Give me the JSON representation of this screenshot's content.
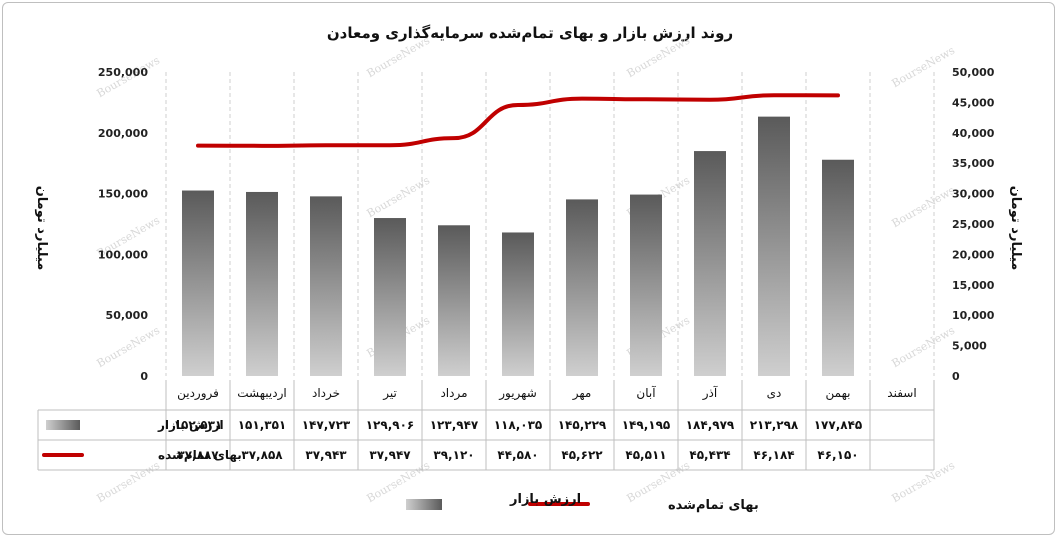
{
  "chart_data": {
    "type": "bar",
    "title": "روند ارزش بازار و بهای تمام‌شده سرمایه‌گذاری ومعادن",
    "categories": [
      "فروردین",
      "اردیبهشت",
      "خرداد",
      "تیر",
      "مرداد",
      "شهریور",
      "مهر",
      "آبان",
      "آذر",
      "دی",
      "بهمن",
      "اسفند"
    ],
    "ylabel_left": "میلیارد تومان",
    "ylabel_right": "میلیارد تومان",
    "ylim_left": [
      0,
      250000
    ],
    "ylim_right": [
      0,
      50000
    ],
    "yticks_left": [
      "0",
      "50,000",
      "100,000",
      "150,000",
      "200,000",
      "250,000"
    ],
    "yticks_right": [
      "0",
      "5,000",
      "10,000",
      "15,000",
      "20,000",
      "25,000",
      "30,000",
      "35,000",
      "40,000",
      "45,000",
      "50,000"
    ],
    "series": [
      {
        "name": "ارزش بازار",
        "type": "bar",
        "axis": "left",
        "color": "#6d6d6d",
        "values": [
          152531,
          151351,
          147723,
          129906,
          123947,
          118035,
          145229,
          149195,
          184979,
          213298,
          177845,
          null
        ],
        "labels": [
          "۱۵۲,۵۳۱",
          "۱۵۱,۳۵۱",
          "۱۴۷,۷۲۳",
          "۱۲۹,۹۰۶",
          "۱۲۳,۹۴۷",
          "۱۱۸,۰۳۵",
          "۱۴۵,۲۲۹",
          "۱۴۹,۱۹۵",
          "۱۸۴,۹۷۹",
          "۲۱۳,۲۹۸",
          "۱۷۷,۸۴۵",
          ""
        ]
      },
      {
        "name": "بهای تمام‌شده",
        "type": "line",
        "axis": "right",
        "color": "#c00000",
        "values": [
          37887,
          37858,
          37943,
          37947,
          39120,
          44580,
          45622,
          45511,
          45434,
          46184,
          46150,
          null
        ],
        "labels": [
          "۳۷,۸۸۷",
          "۳۷,۸۵۸",
          "۳۷,۹۴۳",
          "۳۷,۹۴۷",
          "۳۹,۱۲۰",
          "۴۴,۵۸۰",
          "۴۵,۶۲۲",
          "۴۵,۵۱۱",
          "۴۵,۴۳۴",
          "۴۶,۱۸۴",
          "۴۶,۱۵۰",
          ""
        ]
      }
    ],
    "grid": "vertical",
    "legend": "bottom-center",
    "data_table": true
  },
  "watermark": "BourseNews"
}
